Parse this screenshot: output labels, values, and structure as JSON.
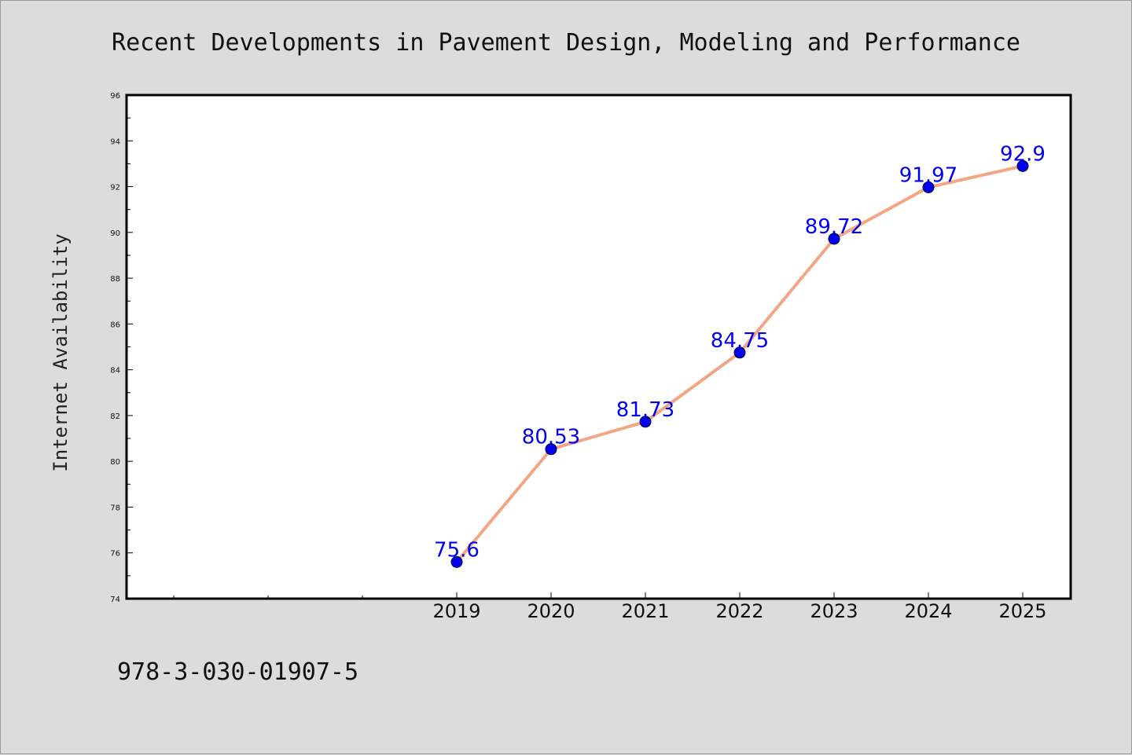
{
  "chart_data": {
    "type": "line",
    "title": "Recent Developments in Pavement Design, Modeling and Performance",
    "ylabel": "Internet Availability",
    "xlabel": "",
    "x": [
      "2019",
      "2020",
      "2021",
      "2022",
      "2023",
      "2024",
      "2025"
    ],
    "series": [
      {
        "values": [
          75.6,
          80.53,
          81.73,
          84.75,
          89.72,
          91.97,
          92.9
        ]
      }
    ],
    "data_labels": [
      "75.6",
      "80.53",
      "81.73",
      "84.75",
      "89.72",
      "91.97",
      "92.9"
    ],
    "ylim": [
      74,
      96
    ],
    "yticks": [
      74,
      76,
      78,
      80,
      82,
      84,
      86,
      88,
      90,
      92,
      94,
      96
    ],
    "grid": false,
    "line_color": "#f4a582",
    "marker_color": "#0000ee",
    "label_color": "#0000ee"
  },
  "footer": {
    "text": "978-3-030-01907-5"
  }
}
